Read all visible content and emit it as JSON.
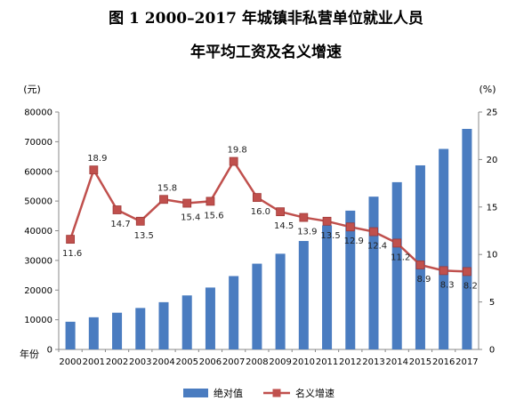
{
  "title_line1": "图 1    2000–2017 年城镇非私营单位就业人员",
  "title_line2": "年平均工资及名义增速",
  "chart_data": {
    "type": "bar+line",
    "categories": [
      "2000",
      "2001",
      "2002",
      "2003",
      "2004",
      "2005",
      "2006",
      "2007",
      "2008",
      "2009",
      "2010",
      "2011",
      "2012",
      "2013",
      "2014",
      "2015",
      "2016",
      "2017"
    ],
    "series": [
      {
        "name": "绝对值",
        "type": "bar",
        "axis": "left",
        "color": "#4a7cc0",
        "values": [
          9333,
          10834,
          12373,
          13969,
          15920,
          18200,
          20856,
          24721,
          28898,
          32244,
          36539,
          41799,
          46769,
          51483,
          56360,
          62029,
          67569,
          74318
        ]
      },
      {
        "name": "名义增速",
        "type": "line",
        "axis": "right",
        "color": "#c0504d",
        "values": [
          11.6,
          18.9,
          14.7,
          13.5,
          15.8,
          15.4,
          15.6,
          19.8,
          16.0,
          14.5,
          13.9,
          13.5,
          12.9,
          12.4,
          11.2,
          8.9,
          8.3,
          8.2
        ]
      }
    ],
    "y_left": {
      "unit": "(元)",
      "min": 0,
      "max": 80000,
      "step": 10000,
      "ticks": [
        "0",
        "10000",
        "20000",
        "30000",
        "40000",
        "50000",
        "60000",
        "70000",
        "80000"
      ]
    },
    "y_right": {
      "unit": "(%)",
      "min": 0,
      "max": 25,
      "step": 5,
      "ticks": [
        "0",
        "5",
        "10",
        "15",
        "20",
        "25"
      ]
    },
    "x_label": "年份",
    "data_labels": [
      "11.6",
      "18.9",
      "14.7",
      "13.5",
      "15.8",
      "15.4",
      "15.6",
      "19.8",
      "16.0",
      "14.5",
      "13.9",
      "13.5",
      "12.9",
      "12.4",
      "11.2",
      "8.9",
      "8.3",
      "8.2"
    ],
    "legend": {
      "position": "bottom",
      "entries": [
        "绝对值",
        "名义增速"
      ]
    },
    "grid": false
  }
}
